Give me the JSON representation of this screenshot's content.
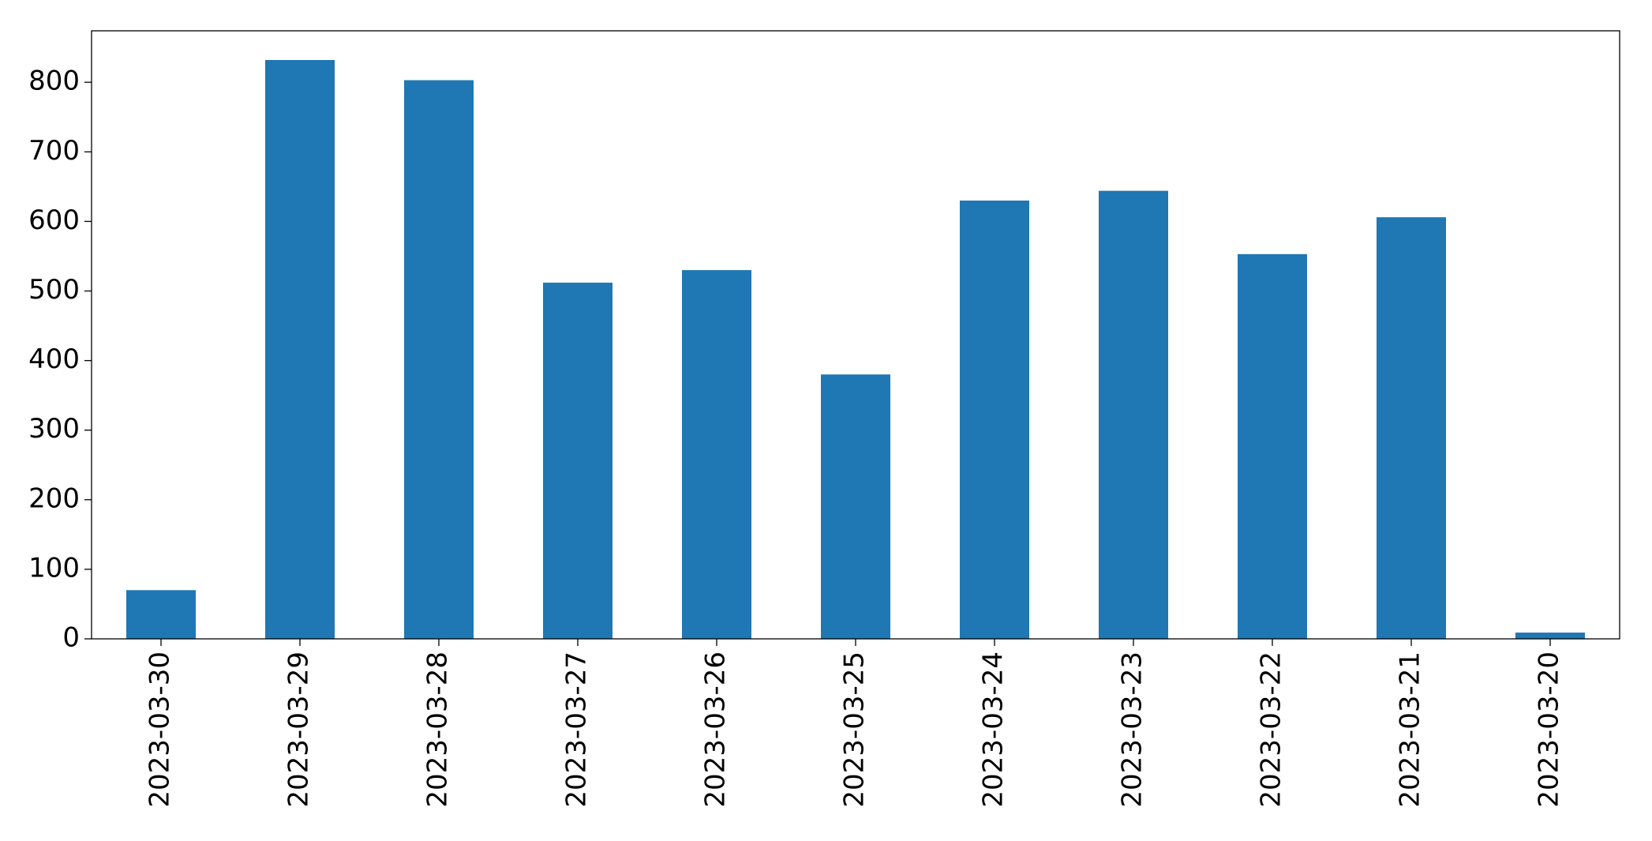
{
  "chart_data": {
    "type": "bar",
    "categories": [
      "2023-03-30",
      "2023-03-29",
      "2023-03-28",
      "2023-03-27",
      "2023-03-26",
      "2023-03-25",
      "2023-03-24",
      "2023-03-23",
      "2023-03-22",
      "2023-03-21",
      "2023-03-20"
    ],
    "values": [
      70,
      832,
      803,
      512,
      530,
      380,
      630,
      644,
      553,
      606,
      9
    ],
    "color": "#1f77b4",
    "ylim": [
      0,
      874
    ],
    "yticks": [
      0,
      100,
      200,
      300,
      400,
      500,
      600,
      700,
      800
    ],
    "grid": false
  }
}
